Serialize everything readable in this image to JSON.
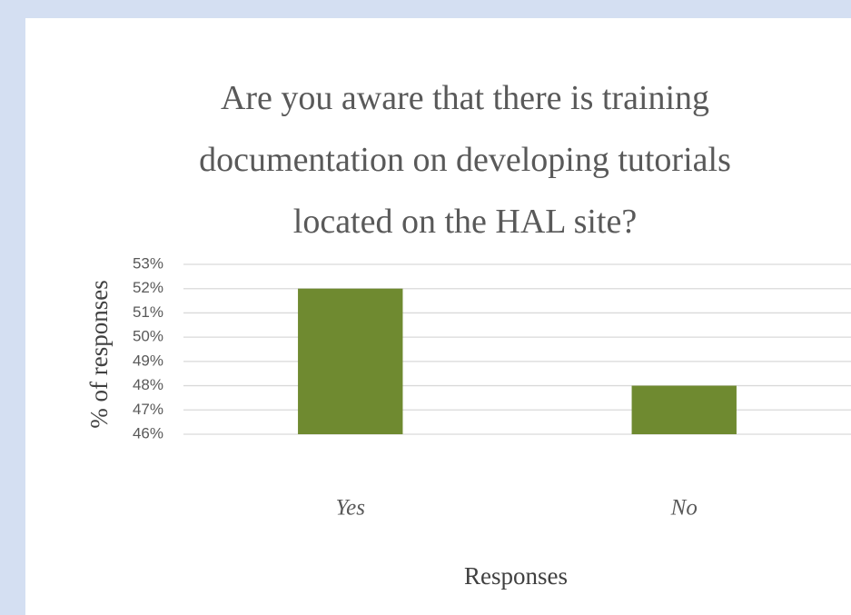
{
  "chart_data": {
    "type": "bar",
    "title": "Are you aware that there is training documentation on developing tutorials located on the HAL site?",
    "x_label": "Responses",
    "y_label": "% of responses",
    "categories": [
      "Yes",
      "No"
    ],
    "values": [
      52,
      48
    ],
    "color": "#6f8a30",
    "ylim": [
      46,
      53
    ],
    "yticks": [
      {
        "value": 46,
        "label": "46%"
      },
      {
        "value": 47,
        "label": "47%"
      },
      {
        "value": 48,
        "label": "48%"
      },
      {
        "value": 49,
        "label": "49%"
      },
      {
        "value": 50,
        "label": "50%"
      },
      {
        "value": 51,
        "label": "51%"
      },
      {
        "value": 52,
        "label": "52%"
      },
      {
        "value": 53,
        "label": "53%"
      }
    ],
    "grid": true
  }
}
